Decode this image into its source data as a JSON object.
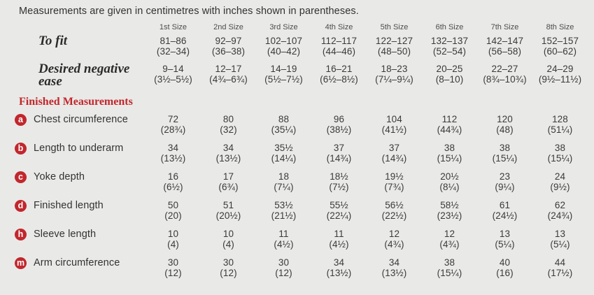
{
  "intro": "Measurements are given in centimetres with inches shown in parentheses.",
  "columns": [
    "1st Size",
    "2nd Size",
    "3rd Size",
    "4th Size",
    "5th Size",
    "6th Size",
    "7th Size",
    "8th Size"
  ],
  "pre_rows": [
    {
      "label": "To fit",
      "cm": [
        "81–86",
        "92–97",
        "102–107",
        "112–117",
        "122–127",
        "132–137",
        "142–147",
        "152–157"
      ],
      "in": [
        "(32–34)",
        "(36–38)",
        "(40–42)",
        "(44–46)",
        "(48–50)",
        "(52–54)",
        "(56–58)",
        "(60–62)"
      ]
    },
    {
      "label": "Desired negative ease",
      "cm": [
        "9–14",
        "12–17",
        "14–19",
        "16–21",
        "18–23",
        "20–25",
        "22–27",
        "24–29"
      ],
      "in": [
        "(3½–5½)",
        "(4¾–6¾)",
        "(5½–7½)",
        "(6½–8½)",
        "(7¼–9¼)",
        "(8–10)",
        "(8¾–10¾)",
        "(9½–11½)"
      ]
    }
  ],
  "section_title": "Finished Measurements",
  "rows": [
    {
      "key": "a",
      "label": "Chest circumference",
      "cm": [
        "72",
        "80",
        "88",
        "96",
        "104",
        "112",
        "120",
        "128"
      ],
      "in": [
        "(28¾)",
        "(32)",
        "(35¼)",
        "(38½)",
        "(41½)",
        "(44¾)",
        "(48)",
        "(51¼)"
      ]
    },
    {
      "key": "b",
      "label": "Length to underarm",
      "cm": [
        "34",
        "34",
        "35½",
        "37",
        "37",
        "38",
        "38",
        "38"
      ],
      "in": [
        "(13½)",
        "(13½)",
        "(14¼)",
        "(14¾)",
        "(14¾)",
        "(15¼)",
        "(15¼)",
        "(15¼)"
      ]
    },
    {
      "key": "c",
      "label": "Yoke depth",
      "cm": [
        "16",
        "17",
        "18",
        "18½",
        "19½",
        "20½",
        "23",
        "24"
      ],
      "in": [
        "(6½)",
        "(6¾)",
        "(7¼)",
        "(7½)",
        "(7¾)",
        "(8¼)",
        "(9¼)",
        "(9½)"
      ]
    },
    {
      "key": "d",
      "label": "Finished length",
      "cm": [
        "50",
        "51",
        "53½",
        "55½",
        "56½",
        "58½",
        "61",
        "62"
      ],
      "in": [
        "(20)",
        "(20½)",
        "(21½)",
        "(22¼)",
        "(22½)",
        "(23½)",
        "(24½)",
        "(24¾)"
      ]
    },
    {
      "key": "h",
      "label": "Sleeve length",
      "cm": [
        "10",
        "10",
        "11",
        "11",
        "12",
        "12",
        "13",
        "13"
      ],
      "in": [
        "(4)",
        "(4)",
        "(4½)",
        "(4½)",
        "(4¾)",
        "(4¾)",
        "(5¼)",
        "(5¼)"
      ]
    },
    {
      "key": "m",
      "label": "Arm circumference",
      "cm": [
        "30",
        "30",
        "30",
        "34",
        "34",
        "38",
        "40",
        "44"
      ],
      "in": [
        "(12)",
        "(12)",
        "(12)",
        "(13½)",
        "(13½)",
        "(15¼)",
        "(16)",
        "(17½)"
      ]
    }
  ],
  "colors": {
    "background": "#e9e9e7",
    "text": "#3a3a38",
    "accent_red": "#c1272d"
  }
}
